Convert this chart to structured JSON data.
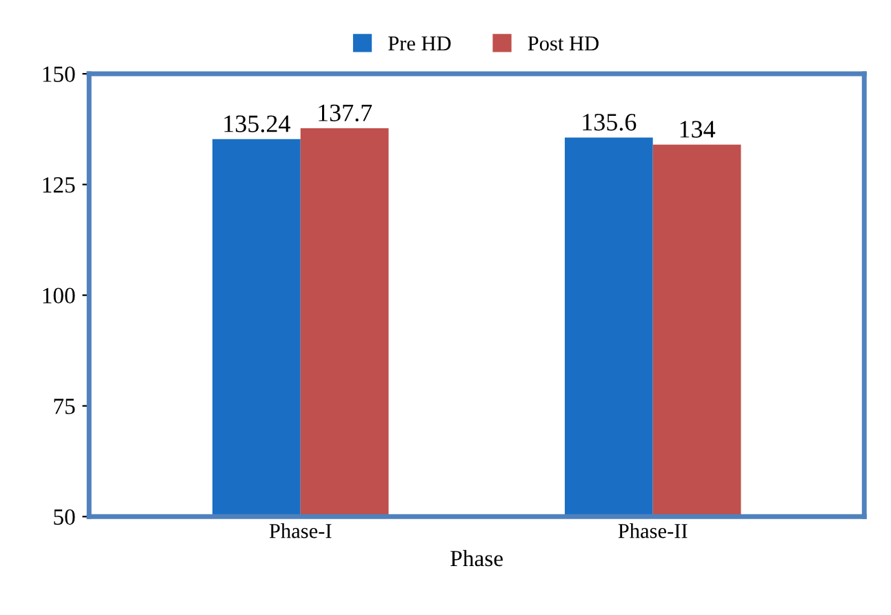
{
  "chart_data": {
    "type": "bar",
    "xlabel": "Phase",
    "categories": [
      "Phase-I",
      "Phase-II"
    ],
    "series": [
      {
        "name": "Pre HD",
        "color": "#1a6fc4",
        "values": [
          135.24,
          135.6
        ]
      },
      {
        "name": "Post HD",
        "color": "#c0504d",
        "values": [
          137.7,
          134
        ]
      }
    ],
    "ylim": [
      50,
      150
    ],
    "yticks": [
      50,
      75,
      100,
      125,
      150
    ],
    "data_labels": true,
    "legend": "top",
    "grid": false
  }
}
